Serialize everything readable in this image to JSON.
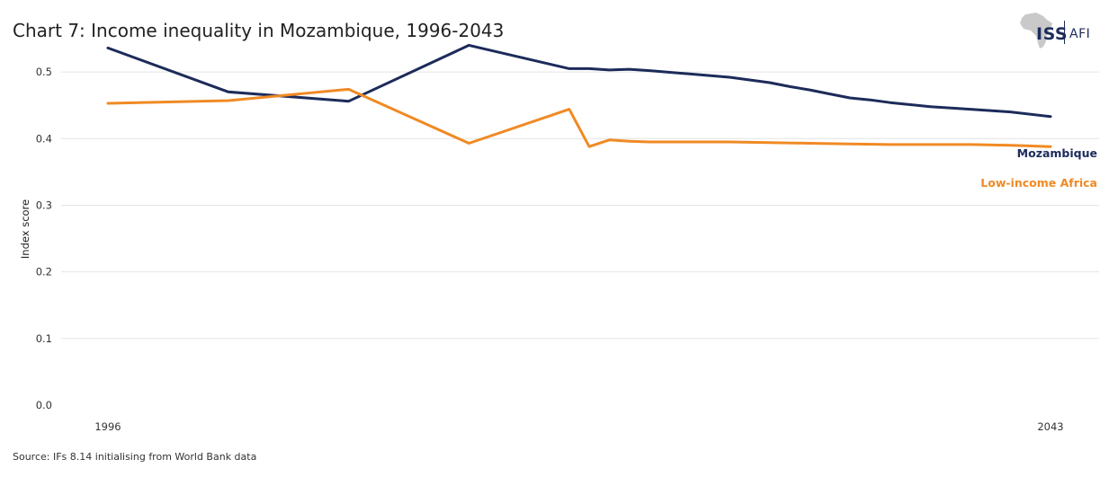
{
  "header": {
    "title": "Chart 7: Income inequality in Mozambique, 1996-2043"
  },
  "logo": {
    "primary": "ISS",
    "secondary": "AFI"
  },
  "footer": {
    "source": "Source: IFs 8.14 initialising from World Bank data"
  },
  "colors": {
    "mozambique": "#1c2b5a",
    "low_income_africa": "#f08a24",
    "grid": "#e4e4e4",
    "continent": "#c9c9c9"
  },
  "chart_data": {
    "type": "line",
    "title": "Chart 7: Income inequality in Mozambique, 1996-2043",
    "xlabel": "",
    "ylabel": "Index score",
    "xlim": [
      1996,
      2043
    ],
    "ylim": [
      0,
      0.55
    ],
    "yticks": [
      0.0,
      0.1,
      0.2,
      0.3,
      0.4,
      0.5
    ],
    "ytick_labels": [
      "0.0",
      "0.1",
      "0.2",
      "0.3",
      "0.4",
      "0.5"
    ],
    "xtick_labels": [
      {
        "value": 1996,
        "label": "1996"
      },
      {
        "value": 2043,
        "label": "2043"
      }
    ],
    "grid": true,
    "series": [
      {
        "name": "Mozambique",
        "color": "#1c2b5a",
        "points": [
          [
            1996,
            0.536
          ],
          [
            2002,
            0.47
          ],
          [
            2008,
            0.456
          ],
          [
            2014,
            0.54
          ],
          [
            2019,
            0.505
          ],
          [
            2020,
            0.505
          ],
          [
            2021,
            0.503
          ],
          [
            2022,
            0.504
          ],
          [
            2023,
            0.502
          ],
          [
            2025,
            0.497
          ],
          [
            2027,
            0.492
          ],
          [
            2029,
            0.484
          ],
          [
            2030,
            0.478
          ],
          [
            2031,
            0.473
          ],
          [
            2032,
            0.467
          ],
          [
            2033,
            0.461
          ],
          [
            2034,
            0.458
          ],
          [
            2035,
            0.454
          ],
          [
            2037,
            0.448
          ],
          [
            2039,
            0.444
          ],
          [
            2041,
            0.44
          ],
          [
            2043,
            0.433
          ]
        ]
      },
      {
        "name": "Low-income Africa",
        "color": "#f08a24",
        "points": [
          [
            1996,
            0.453
          ],
          [
            2002,
            0.457
          ],
          [
            2008,
            0.474
          ],
          [
            2014,
            0.393
          ],
          [
            2019,
            0.444
          ],
          [
            2020,
            0.388
          ],
          [
            2021,
            0.398
          ],
          [
            2022,
            0.396
          ],
          [
            2023,
            0.395
          ],
          [
            2025,
            0.395
          ],
          [
            2027,
            0.395
          ],
          [
            2029,
            0.394
          ],
          [
            2031,
            0.393
          ],
          [
            2033,
            0.392
          ],
          [
            2035,
            0.391
          ],
          [
            2037,
            0.391
          ],
          [
            2039,
            0.391
          ],
          [
            2041,
            0.39
          ],
          [
            2043,
            0.388
          ]
        ]
      }
    ]
  }
}
